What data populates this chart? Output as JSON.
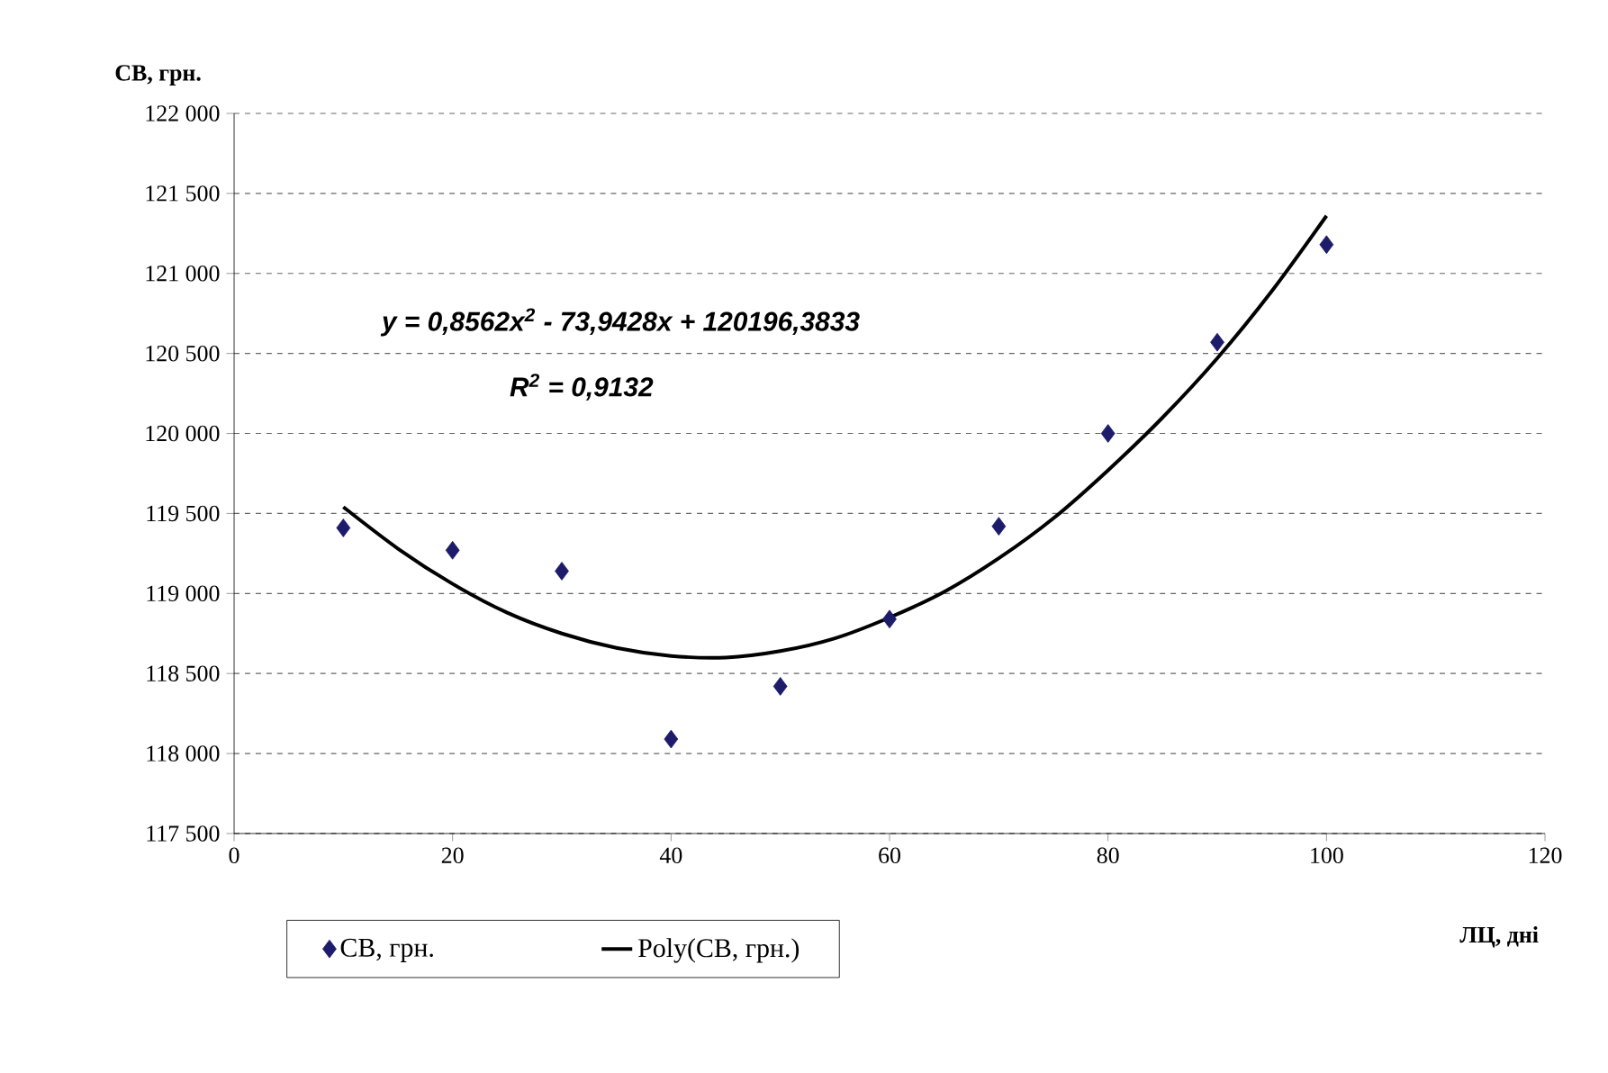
{
  "chart_data": {
    "type": "scatter",
    "xlabel": "ЛЦ, дні",
    "ylabel": "СВ, грн.",
    "annotations": [
      "y = 0,8562x$^{2}$ - 73,9428x + 120196,3833",
      "R$^{2}$ = 0,9132"
    ],
    "xlim": [
      0,
      120
    ],
    "xticks": [
      0,
      20,
      40,
      60,
      80,
      100,
      120
    ],
    "ylim": [
      117500,
      122000
    ],
    "yticks": [
      {
        "value": 117500,
        "label": "117 500"
      },
      {
        "value": 118000,
        "label": "118 000"
      },
      {
        "value": 118500,
        "label": "118 500"
      },
      {
        "value": 119000,
        "label": "119 000"
      },
      {
        "value": 119500,
        "label": "119 500"
      },
      {
        "value": 120000,
        "label": "120 000"
      },
      {
        "value": 120500,
        "label": "120 500"
      },
      {
        "value": 121000,
        "label": "121 000"
      },
      {
        "value": 121500,
        "label": "121 500"
      },
      {
        "value": 122000,
        "label": "122 000"
      }
    ],
    "grid": "y",
    "legend": "bottom",
    "series": [
      {
        "name": "СВ, грн.",
        "marker": "diamond",
        "color": "#1c1c6b",
        "x": [
          10,
          20,
          30,
          40,
          50,
          60,
          70,
          80,
          90,
          100
        ],
        "values": [
          119410,
          119270,
          119140,
          118090,
          118420,
          118840,
          119420,
          120000,
          120570,
          121180
        ]
      },
      {
        "name": "Poly(СВ, грн.)",
        "type": "line",
        "marker": "none",
        "color": "#000000",
        "x": [
          10,
          15,
          20,
          25,
          30,
          35,
          40,
          45,
          50,
          55,
          60,
          65,
          70,
          75,
          80,
          85,
          90,
          95,
          100
        ],
        "values": [
          119540,
          119280,
          119060,
          118880,
          118750,
          118660,
          118610,
          118600,
          118640,
          118720,
          118850,
          119010,
          119220,
          119470,
          119770,
          120100,
          120470,
          120890,
          121360
        ]
      }
    ]
  }
}
